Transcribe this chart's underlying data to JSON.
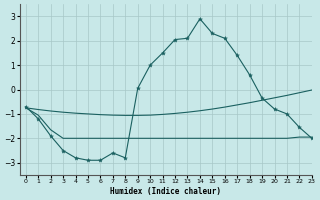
{
  "xlabel": "Humidex (Indice chaleur)",
  "background_color": "#c8e8e8",
  "grid_color": "#a8c8c8",
  "line_color": "#1a6060",
  "xlim": [
    -0.5,
    23
  ],
  "ylim": [
    -3.5,
    3.5
  ],
  "yticks": [
    -3,
    -2,
    -1,
    0,
    1,
    2,
    3
  ],
  "xticks": [
    0,
    1,
    2,
    3,
    4,
    5,
    6,
    7,
    8,
    9,
    10,
    11,
    12,
    13,
    14,
    15,
    16,
    17,
    18,
    19,
    20,
    21,
    22,
    23
  ],
  "line1_x": [
    0,
    1,
    2,
    3,
    4,
    5,
    6,
    7,
    8,
    9,
    10,
    11,
    12,
    13,
    14,
    15,
    16,
    17,
    18,
    19,
    20,
    21,
    22,
    23
  ],
  "line1_y": [
    -0.7,
    -1.2,
    -1.9,
    -2.5,
    -2.8,
    -2.9,
    -2.9,
    -2.6,
    -2.8,
    0.05,
    1.0,
    1.5,
    2.05,
    2.1,
    2.9,
    2.3,
    2.1,
    1.4,
    0.6,
    -0.35,
    -0.8,
    -1.0,
    -1.55,
    -2.0
  ],
  "line2_x": [
    0,
    1,
    2,
    3,
    4,
    5,
    6,
    7,
    8,
    9,
    10,
    11,
    12,
    13,
    14,
    15,
    16,
    17,
    18,
    19,
    20,
    21,
    22,
    23
  ],
  "line2_y": [
    -0.75,
    -0.82,
    -0.88,
    -0.93,
    -0.97,
    -1.0,
    -1.03,
    -1.05,
    -1.06,
    -1.06,
    -1.05,
    -1.02,
    -0.98,
    -0.93,
    -0.87,
    -0.8,
    -0.72,
    -0.63,
    -0.54,
    -0.44,
    -0.34,
    -0.24,
    -0.13,
    -0.02
  ],
  "line3_x": [
    0,
    1,
    2,
    3,
    4,
    5,
    6,
    7,
    8,
    9,
    10,
    11,
    12,
    13,
    14,
    15,
    16,
    17,
    18,
    19,
    20,
    21,
    22,
    23
  ],
  "line3_y": [
    -0.75,
    -1.05,
    -1.65,
    -2.0,
    -2.0,
    -2.0,
    -2.0,
    -2.0,
    -2.0,
    -2.0,
    -2.0,
    -2.0,
    -2.0,
    -2.0,
    -2.0,
    -2.0,
    -2.0,
    -2.0,
    -2.0,
    -2.0,
    -2.0,
    -2.0,
    -1.95,
    -1.95
  ],
  "figsize": [
    3.2,
    2.0
  ],
  "dpi": 100
}
